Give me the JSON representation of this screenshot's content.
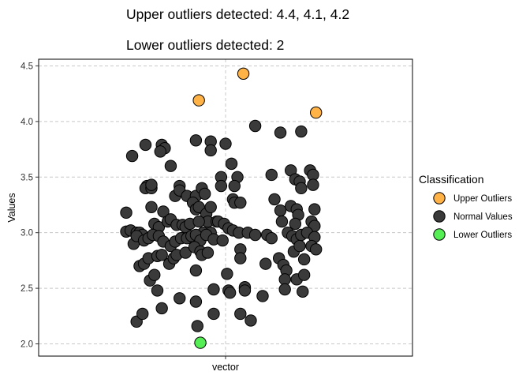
{
  "chart_data": {
    "type": "scatter",
    "title_lines": [
      "Upper outliers detected: 4.4, 4.1, 4.2",
      "Lower outliers detected: 2"
    ],
    "xlabel": "vector",
    "ylabel": "Values",
    "x_categories": [
      "vector"
    ],
    "ylim": [
      1.89,
      4.56
    ],
    "y_ticks": [
      2.0,
      2.5,
      3.0,
      3.5,
      4.0,
      4.5
    ],
    "y_tick_labels": [
      "2.0",
      "2.5",
      "3.0",
      "3.5",
      "4.0",
      "4.5"
    ],
    "grid": true,
    "legend_position": "right",
    "legend_title": "Classification",
    "colors": {
      "upper": "#FFB347",
      "normal": "#3A3A3A",
      "lower": "#55EE55",
      "grid": "#C8C8C8",
      "point_stroke": "#000000"
    },
    "series": [
      {
        "name": "Upper Outliers",
        "color_key": "upper",
        "points": [
          [
            0.12,
            4.43
          ],
          [
            -0.18,
            4.19
          ],
          [
            0.61,
            4.08
          ]
        ]
      },
      {
        "name": "Normal Values",
        "color_key": "normal",
        "points": [
          [
            -0.63,
            3.69
          ],
          [
            -0.54,
            3.79
          ],
          [
            -0.43,
            3.79
          ],
          [
            -0.41,
            3.76
          ],
          [
            -0.44,
            3.73
          ],
          [
            -0.37,
            3.6
          ],
          [
            -0.2,
            3.83
          ],
          [
            -0.1,
            3.82
          ],
          [
            -0.1,
            3.74
          ],
          [
            0.0,
            3.8
          ],
          [
            0.2,
            3.96
          ],
          [
            0.37,
            3.9
          ],
          [
            0.51,
            3.91
          ],
          [
            0.04,
            3.62
          ],
          [
            0.08,
            3.5
          ],
          [
            -0.03,
            3.5
          ],
          [
            -0.03,
            3.42
          ],
          [
            0.06,
            3.42
          ],
          [
            0.31,
            3.52
          ],
          [
            0.44,
            3.56
          ],
          [
            0.47,
            3.48
          ],
          [
            0.5,
            3.46
          ],
          [
            0.51,
            3.4
          ],
          [
            0.57,
            3.56
          ],
          [
            0.59,
            3.52
          ],
          [
            0.59,
            3.43
          ],
          [
            -0.53,
            3.42
          ],
          [
            -0.54,
            3.4
          ],
          [
            -0.5,
            3.4
          ],
          [
            -0.5,
            3.43
          ],
          [
            -0.34,
            3.33
          ],
          [
            -0.31,
            3.42
          ],
          [
            -0.31,
            3.38
          ],
          [
            -0.26,
            3.33
          ],
          [
            -0.2,
            3.33
          ],
          [
            -0.16,
            3.4
          ],
          [
            -0.14,
            3.35
          ],
          [
            -0.22,
            3.27
          ],
          [
            -0.2,
            3.21
          ],
          [
            -0.18,
            3.23
          ],
          [
            -0.13,
            3.17
          ],
          [
            -0.1,
            3.23
          ],
          [
            -0.12,
            3.1
          ],
          [
            -0.06,
            3.1
          ],
          [
            0.05,
            3.3
          ],
          [
            0.06,
            3.27
          ],
          [
            0.1,
            3.27
          ],
          [
            0.33,
            3.3
          ],
          [
            0.37,
            3.2
          ],
          [
            0.44,
            3.24
          ],
          [
            0.48,
            3.21
          ],
          [
            0.49,
            3.16
          ],
          [
            0.47,
            3.08
          ],
          [
            0.6,
            3.21
          ],
          [
            0.58,
            3.1
          ],
          [
            0.6,
            3.06
          ],
          [
            -0.67,
            3.18
          ],
          [
            -0.67,
            3.01
          ],
          [
            -0.64,
            3.02
          ],
          [
            -0.6,
            3.0
          ],
          [
            -0.58,
            3.0
          ],
          [
            -0.56,
            2.98
          ],
          [
            -0.5,
            3.23
          ],
          [
            -0.48,
            3.08
          ],
          [
            -0.45,
            3.05
          ],
          [
            -0.42,
            3.19
          ],
          [
            -0.39,
            3.1
          ],
          [
            -0.37,
            3.12
          ],
          [
            -0.33,
            3.07
          ],
          [
            -0.29,
            3.07
          ],
          [
            -0.27,
            3.05
          ],
          [
            -0.24,
            3.08
          ],
          [
            -0.18,
            3.1
          ],
          [
            -0.15,
            3.0
          ],
          [
            -0.1,
            3.0
          ],
          [
            -0.05,
            3.1
          ],
          [
            -0.01,
            3.08
          ],
          [
            0.02,
            3.04
          ],
          [
            0.05,
            3.02
          ],
          [
            0.09,
            3.0
          ],
          [
            0.15,
            3.0
          ],
          [
            0.2,
            2.98
          ],
          [
            0.28,
            2.98
          ],
          [
            0.31,
            2.95
          ],
          [
            0.38,
            3.1
          ],
          [
            0.42,
            3.0
          ],
          [
            0.45,
            2.97
          ],
          [
            0.48,
            2.94
          ],
          [
            0.51,
            2.98
          ],
          [
            0.55,
            3.0
          ],
          [
            0.6,
            2.96
          ],
          [
            -0.62,
            2.9
          ],
          [
            -0.6,
            2.97
          ],
          [
            -0.55,
            2.93
          ],
          [
            -0.52,
            2.95
          ],
          [
            -0.49,
            2.98
          ],
          [
            -0.45,
            2.97
          ],
          [
            -0.42,
            2.92
          ],
          [
            -0.37,
            2.88
          ],
          [
            -0.34,
            2.92
          ],
          [
            -0.3,
            2.95
          ],
          [
            -0.26,
            2.95
          ],
          [
            -0.23,
            2.97
          ],
          [
            -0.2,
            2.98
          ],
          [
            -0.17,
            2.93
          ],
          [
            -0.13,
            2.98
          ],
          [
            -0.08,
            2.94
          ],
          [
            -0.02,
            2.93
          ],
          [
            0.1,
            2.85
          ],
          [
            -0.58,
            2.7
          ],
          [
            -0.55,
            2.72
          ],
          [
            -0.52,
            2.77
          ],
          [
            -0.46,
            2.79
          ],
          [
            -0.43,
            2.8
          ],
          [
            -0.38,
            2.72
          ],
          [
            -0.35,
            2.77
          ],
          [
            -0.33,
            2.8
          ],
          [
            -0.27,
            2.82
          ],
          [
            -0.21,
            2.87
          ],
          [
            -0.17,
            2.83
          ],
          [
            -0.16,
            2.8
          ],
          [
            -0.12,
            2.82
          ],
          [
            0.1,
            2.77
          ],
          [
            0.27,
            2.72
          ],
          [
            0.36,
            2.77
          ],
          [
            0.39,
            2.71
          ],
          [
            0.41,
            2.66
          ],
          [
            0.46,
            2.83
          ],
          [
            0.5,
            2.88
          ],
          [
            0.53,
            2.76
          ],
          [
            0.58,
            2.88
          ],
          [
            0.61,
            2.85
          ],
          [
            -0.51,
            2.57
          ],
          [
            -0.48,
            2.62
          ],
          [
            -0.46,
            2.48
          ],
          [
            -0.2,
            2.66
          ],
          [
            -0.08,
            2.49
          ],
          [
            0.01,
            2.63
          ],
          [
            0.02,
            2.48
          ],
          [
            0.03,
            2.46
          ],
          [
            0.13,
            2.51
          ],
          [
            0.13,
            2.48
          ],
          [
            0.4,
            2.58
          ],
          [
            0.4,
            2.49
          ],
          [
            0.48,
            2.58
          ],
          [
            0.53,
            2.62
          ],
          [
            0.52,
            2.47
          ],
          [
            -0.6,
            2.2
          ],
          [
            -0.56,
            2.27
          ],
          [
            -0.43,
            2.32
          ],
          [
            -0.31,
            2.41
          ],
          [
            -0.2,
            2.38
          ],
          [
            -0.19,
            2.16
          ],
          [
            -0.08,
            2.27
          ],
          [
            0.1,
            2.27
          ],
          [
            0.17,
            2.21
          ],
          [
            0.25,
            2.43
          ]
        ]
      },
      {
        "name": "Lower Outliers",
        "color_key": "lower",
        "points": [
          [
            -0.17,
            2.01
          ]
        ]
      }
    ]
  }
}
